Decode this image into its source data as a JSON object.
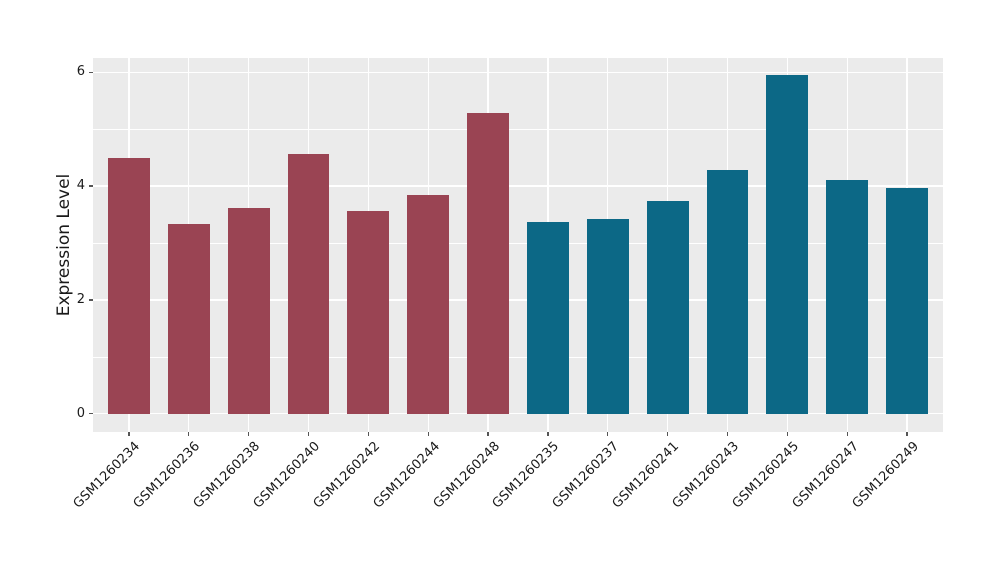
{
  "chart_data": {
    "type": "bar",
    "title": "",
    "xlabel": "",
    "ylabel": "Expression Level",
    "ylim": [
      -0.32,
      6.25
    ],
    "yticks": [
      {
        "value": 0,
        "label": "0"
      },
      {
        "value": 2,
        "label": "2"
      },
      {
        "value": 4,
        "label": "4"
      },
      {
        "value": 6,
        "label": "6"
      }
    ],
    "yticks_minor": [
      1,
      3,
      5
    ],
    "grid": "white major and minor horizontal lines, white vertical lines at each category center",
    "legend_position": "none",
    "categories": [
      "GSM1260234",
      "GSM1260236",
      "GSM1260238",
      "GSM1260240",
      "GSM1260242",
      "GSM1260244",
      "GSM1260248",
      "GSM1260235",
      "GSM1260237",
      "GSM1260241",
      "GSM1260243",
      "GSM1260245",
      "GSM1260247",
      "GSM1260249"
    ],
    "bars": [
      {
        "label": "GSM1260234",
        "value": 4.5,
        "group": "group-1"
      },
      {
        "label": "GSM1260236",
        "value": 3.33,
        "group": "group-1"
      },
      {
        "label": "GSM1260238",
        "value": 3.62,
        "group": "group-1"
      },
      {
        "label": "GSM1260240",
        "value": 4.57,
        "group": "group-1"
      },
      {
        "label": "GSM1260242",
        "value": 3.56,
        "group": "group-1"
      },
      {
        "label": "GSM1260244",
        "value": 3.85,
        "group": "group-1"
      },
      {
        "label": "GSM1260248",
        "value": 5.28,
        "group": "group-1"
      },
      {
        "label": "GSM1260235",
        "value": 3.37,
        "group": "group-2"
      },
      {
        "label": "GSM1260237",
        "value": 3.42,
        "group": "group-2"
      },
      {
        "label": "GSM1260241",
        "value": 3.73,
        "group": "group-2"
      },
      {
        "label": "GSM1260243",
        "value": 4.28,
        "group": "group-2"
      },
      {
        "label": "GSM1260245",
        "value": 5.95,
        "group": "group-2"
      },
      {
        "label": "GSM1260247",
        "value": 4.1,
        "group": "group-2"
      },
      {
        "label": "GSM1260249",
        "value": 3.96,
        "group": "group-2"
      }
    ],
    "group_colors": {
      "group-1": "#9A4453",
      "group-2": "#0C6886"
    },
    "colors": {
      "background": "#FFFFFF",
      "panel_background": "#EBEBEB",
      "grid": "#FFFFFF",
      "tick": "#555555",
      "text": "#1A1A1A"
    }
  }
}
